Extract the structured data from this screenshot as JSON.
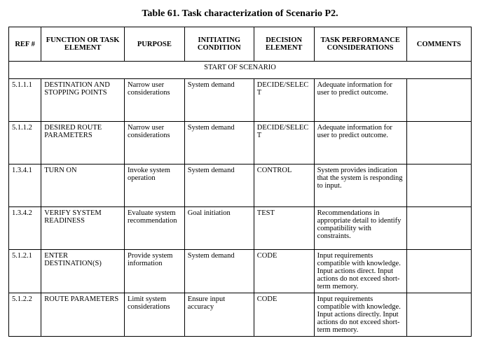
{
  "title": "Table 61.  Task characterization of Scenario P2.",
  "headers": {
    "ref": "REF #",
    "func": "FUNCTION OR TASK ELEMENT",
    "purpose": "PURPOSE",
    "init": "INITIATING CONDITION",
    "decision": "DECISION ELEMENT",
    "task": "TASK PERFORMANCE CONSIDERATIONS",
    "comments": "COMMENTS"
  },
  "section_label": "START OF SCENARIO",
  "rows": [
    {
      "ref": "5.1.1.1",
      "func": "DESTINATION AND STOPPING POINTS",
      "purpose": "Narrow user considerations",
      "init": "System demand",
      "decision": "DECIDE/SELECT",
      "task": "Adequate information for user to predict outcome.",
      "comments": ""
    },
    {
      "ref": "5.1.1.2",
      "func": "DESIRED ROUTE PARAMETERS",
      "purpose": "Narrow user considerations",
      "init": "System demand",
      "decision": "DECIDE/SELECT",
      "task": "Adequate information for user to predict outcome.",
      "comments": ""
    },
    {
      "ref": "1.3.4.1",
      "func": "TURN ON",
      "purpose": "Invoke system operation",
      "init": "System demand",
      "decision": "CONTROL",
      "task": "System provides indication that the system is responding to input.",
      "comments": ""
    },
    {
      "ref": "1.3.4.2",
      "func": "VERIFY SYSTEM READINESS",
      "purpose": "Evaluate system recommendation",
      "init": "Goal initiation",
      "decision": "TEST",
      "task": "Recommendations  in appropriate detail to identify compatibility with constraints.",
      "comments": ""
    },
    {
      "ref": "5.1.2.1",
      "func": "ENTER DESTINATION(S)",
      "purpose": "Provide system information",
      "init": "System demand",
      "decision": "CODE",
      "task": "Input requirements compatible with knowledge.  Input actions direct.  Input actions do not exceed short-term memory.",
      "comments": ""
    },
    {
      "ref": "5.1.2.2",
      "func": "ROUTE PARAMETERS",
      "purpose": "Limit system considerations",
      "init": "Ensure input accuracy",
      "decision": "CODE",
      "task": "Input requirements compatible with knowledge.  Input actions directly.  Input actions do not exceed short-term memory.",
      "comments": ""
    }
  ]
}
